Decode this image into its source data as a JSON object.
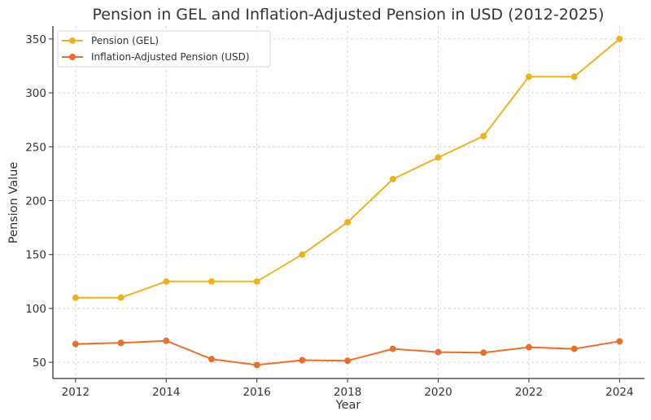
{
  "chart_data": {
    "type": "line",
    "title": "Pension in GEL and Inflation-Adjusted Pension in USD (2012-2025)",
    "xlabel": "Year",
    "ylabel": "Pension Value",
    "x": [
      2012,
      2013,
      2014,
      2015,
      2016,
      2017,
      2018,
      2019,
      2020,
      2021,
      2022,
      2023,
      2024
    ],
    "xlim": [
      2011.5,
      2024.55
    ],
    "ylim": [
      35,
      362
    ],
    "xticks": [
      2012,
      2014,
      2016,
      2018,
      2020,
      2022,
      2024
    ],
    "xtick_labels": [
      "2012",
      "2014",
      "2016",
      "2018",
      "2020",
      "2022",
      "2024"
    ],
    "yticks": [
      50,
      100,
      150,
      200,
      250,
      300,
      350
    ],
    "ytick_labels": [
      "50",
      "100",
      "150",
      "200",
      "250",
      "300",
      "350"
    ],
    "grid": true,
    "legend_position": "top-left",
    "series": [
      {
        "name": "Pension (GEL)",
        "color": "#F0B020",
        "marker": "circle",
        "values": [
          110,
          110,
          125,
          125,
          125,
          150,
          180,
          220,
          240,
          260,
          315,
          315,
          350
        ]
      },
      {
        "name": "Inflation-Adjusted Pension (USD)",
        "color": "#E8702A",
        "marker": "circle",
        "values": [
          67,
          68,
          70,
          53,
          47.5,
          52,
          51.5,
          62.5,
          59.5,
          59,
          64,
          62.5,
          69.5
        ]
      }
    ]
  }
}
